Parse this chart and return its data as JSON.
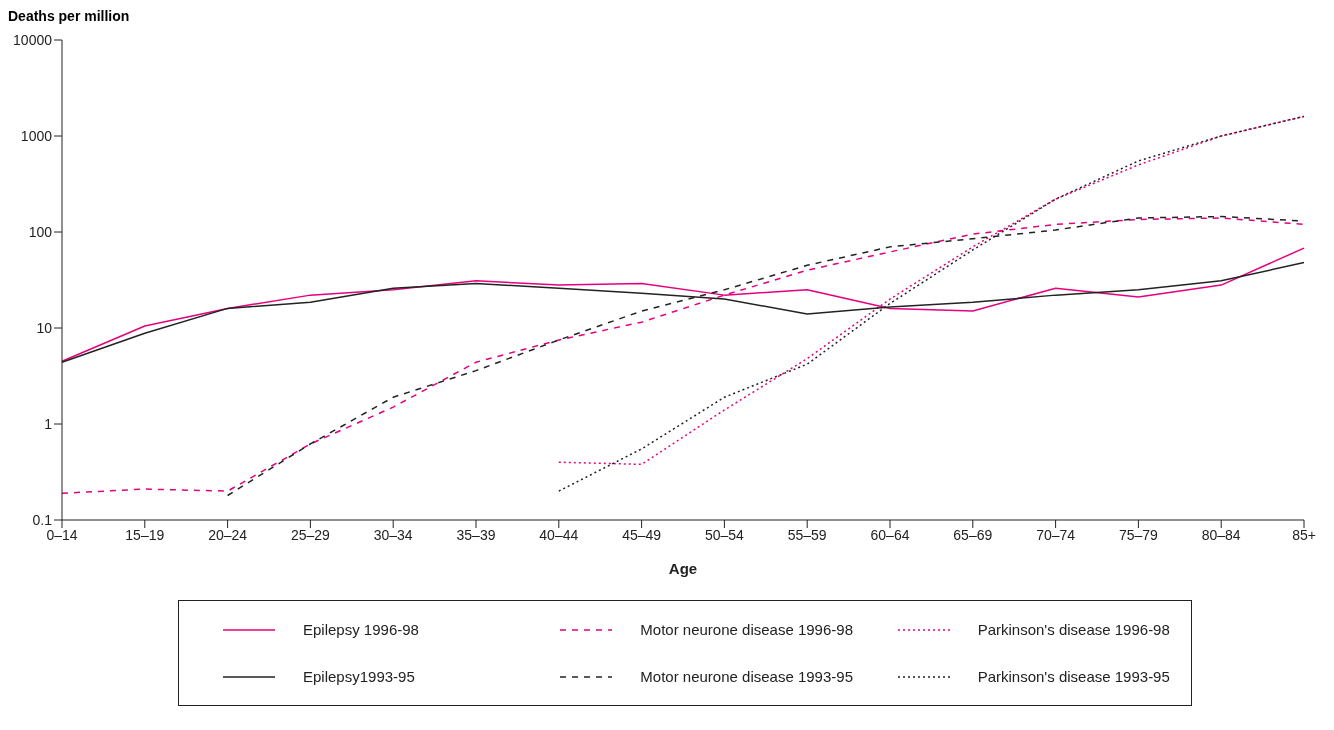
{
  "chart_data": {
    "type": "line",
    "ylabel": "Deaths per million",
    "xlabel": "Age",
    "categories": [
      "0–14",
      "15–19",
      "20–24",
      "25–29",
      "30–34",
      "35–39",
      "40–44",
      "45–49",
      "50–54",
      "55–59",
      "60–64",
      "65–69",
      "70–74",
      "75–79",
      "80–84",
      "85+"
    ],
    "log": true,
    "ylim": [
      0.1,
      10000
    ],
    "yticks": [
      0.1,
      1,
      10,
      100,
      1000,
      10000
    ],
    "grid": false,
    "legend": "bottom",
    "marker": "none",
    "series": [
      {
        "name": "Epilepsy 1996-98",
        "color": "#e6007e",
        "line_style": "solid",
        "values": [
          4.5,
          10.5,
          16,
          22,
          25,
          31,
          28,
          29,
          22,
          25,
          16,
          15,
          26,
          21,
          28,
          68
        ]
      },
      {
        "name": "Motor neurone disease 1996-98",
        "color": "#e6007e",
        "line_style": "dashed",
        "values": [
          0.19,
          0.21,
          0.2,
          0.62,
          1.5,
          4.4,
          7.5,
          11.5,
          22,
          40,
          62,
          95,
          120,
          135,
          140,
          120
        ]
      },
      {
        "name": "Parkinson's disease 1996-98",
        "color": "#e6007e",
        "line_style": "dotted",
        "values": [
          null,
          null,
          null,
          null,
          null,
          null,
          0.4,
          0.38,
          1.4,
          4.8,
          20,
          70,
          220,
          500,
          1000,
          1600
        ]
      },
      {
        "name": "Epilepsy1993-95",
        "color": "#222222",
        "line_style": "solid",
        "values": [
          4.4,
          8.8,
          16,
          18.5,
          26,
          29,
          26,
          23,
          20,
          14,
          16.5,
          18.5,
          22,
          25,
          31,
          48
        ]
      },
      {
        "name": "Motor neurone disease 1993-95",
        "color": "#222222",
        "line_style": "dashed",
        "values": [
          null,
          null,
          0.18,
          0.62,
          1.9,
          3.6,
          7.5,
          15,
          25,
          45,
          70,
          85,
          105,
          140,
          145,
          130
        ]
      },
      {
        "name": "Parkinson's disease 1993-95",
        "color": "#222222",
        "line_style": "dotted",
        "values": [
          null,
          null,
          null,
          null,
          null,
          null,
          0.2,
          0.55,
          1.9,
          4.2,
          18,
          65,
          220,
          550,
          1000,
          1600
        ]
      }
    ]
  }
}
